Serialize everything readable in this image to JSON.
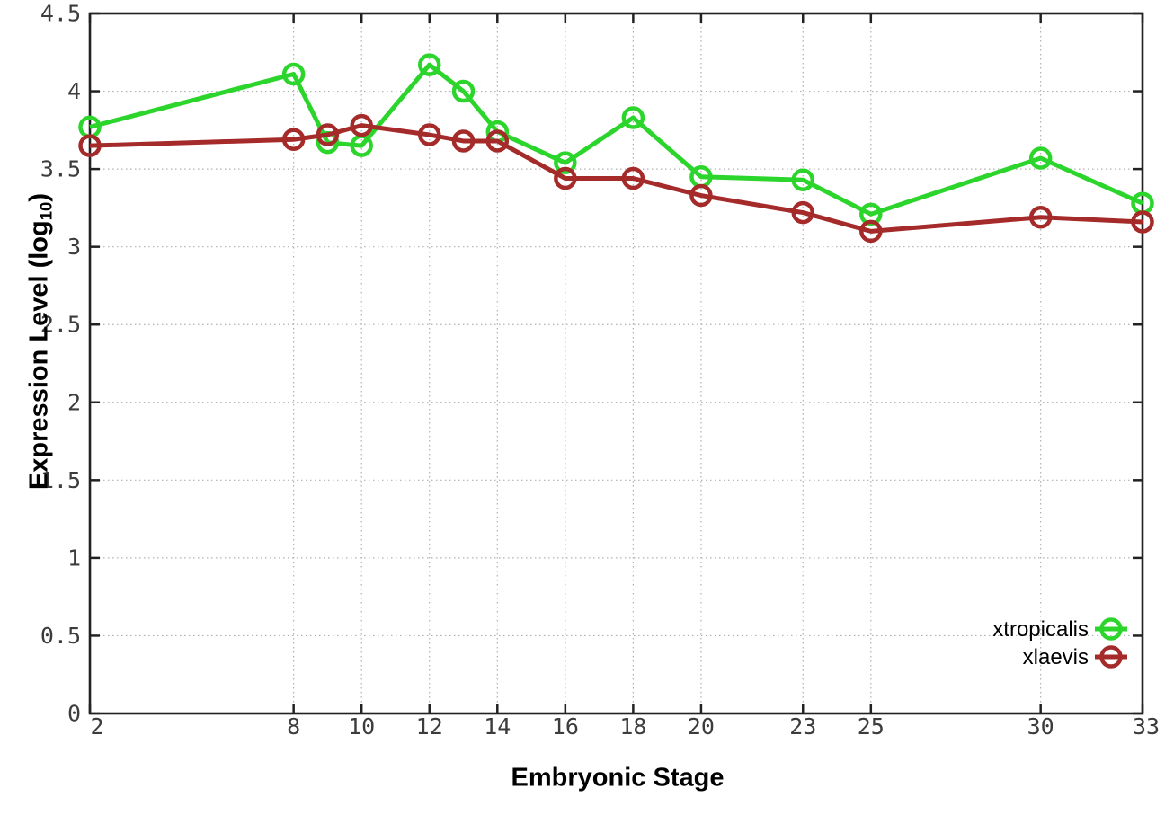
{
  "chart": {
    "background": "#ffffff",
    "axis_color": "#222222",
    "grid_color": "#b0b0b0",
    "tick_label_color": "#3c3c3c",
    "xlabel": "Embryonic Stage",
    "ylabel": {
      "pre": "Expression Level (log",
      "sub": "10",
      "post": ")"
    }
  },
  "chart_data": {
    "type": "line",
    "title": "",
    "xlabel": "Embryonic Stage",
    "ylabel": "Expression Level (log10)",
    "xlim": [
      2,
      33
    ],
    "ylim": [
      0,
      4.5
    ],
    "x_ticks": [
      2,
      8,
      10,
      12,
      14,
      16,
      18,
      20,
      23,
      25,
      30,
      33
    ],
    "y_ticks": [
      0,
      0.5,
      1,
      1.5,
      2,
      2.5,
      3,
      3.5,
      4,
      4.5
    ],
    "grid": true,
    "marker": "open-circle",
    "legend_position": "inside-bottom-right",
    "x": [
      2,
      8,
      9,
      10,
      12,
      13,
      14,
      16,
      18,
      20,
      23,
      25,
      30,
      33
    ],
    "series": [
      {
        "name": "xtropicalis",
        "color": "#2bd52b",
        "values": [
          3.77,
          4.11,
          3.67,
          3.65,
          4.17,
          4.0,
          3.74,
          3.54,
          3.83,
          3.45,
          3.43,
          3.21,
          3.57,
          3.28
        ]
      },
      {
        "name": "xlaevis",
        "color": "#a52a2a",
        "values": [
          3.65,
          3.69,
          3.72,
          3.78,
          3.72,
          3.68,
          3.68,
          3.44,
          3.44,
          3.33,
          3.22,
          3.1,
          3.19,
          3.16
        ]
      }
    ]
  }
}
